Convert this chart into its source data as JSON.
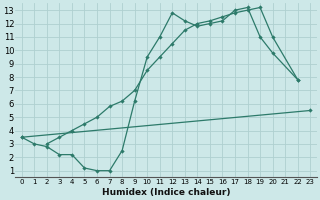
{
  "xlabel": "Humidex (Indice chaleur)",
  "bg_color": "#cde8e8",
  "grid_color": "#afd0d0",
  "line_color": "#2d7a6a",
  "xlim": [
    -0.5,
    23.5
  ],
  "ylim": [
    0.5,
    13.5
  ],
  "xticks": [
    0,
    1,
    2,
    3,
    4,
    5,
    6,
    7,
    8,
    9,
    10,
    11,
    12,
    13,
    14,
    15,
    16,
    17,
    18,
    19,
    20,
    21,
    22,
    23
  ],
  "yticks": [
    1,
    2,
    3,
    4,
    5,
    6,
    7,
    8,
    9,
    10,
    11,
    12,
    13
  ],
  "line1_x": [
    0,
    1,
    2,
    3,
    4,
    5,
    6,
    7,
    8,
    9,
    10,
    11,
    12,
    13,
    14,
    15,
    16,
    17,
    18,
    19,
    20,
    22
  ],
  "line1_y": [
    3.5,
    3.0,
    2.8,
    2.2,
    2.2,
    1.2,
    1.0,
    1.0,
    2.5,
    6.2,
    9.5,
    11.0,
    12.8,
    12.2,
    11.8,
    12.0,
    12.2,
    13.0,
    13.2,
    11.0,
    9.8,
    7.8
  ],
  "line2_x": [
    0,
    23
  ],
  "line2_y": [
    3.5,
    5.5
  ],
  "line3_x": [
    2,
    3,
    4,
    5,
    6,
    7,
    8,
    9,
    10,
    11,
    12,
    13,
    14,
    15,
    16,
    17,
    18,
    19,
    20,
    22
  ],
  "line3_y": [
    3.0,
    3.5,
    4.0,
    4.5,
    5.0,
    5.8,
    6.2,
    7.0,
    8.5,
    9.5,
    10.5,
    11.5,
    12.0,
    12.2,
    12.5,
    12.8,
    13.0,
    13.2,
    11.0,
    7.8
  ]
}
